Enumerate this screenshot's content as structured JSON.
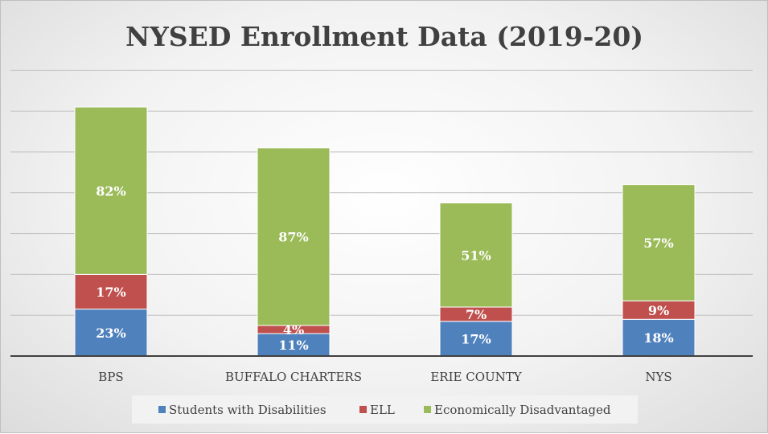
{
  "chart_data": {
    "type": "bar",
    "stacked": true,
    "title": "NYSED Enrollment Data (2019-20)",
    "categories": [
      "BPS",
      "BUFFALO CHARTERS",
      "ERIE COUNTY",
      "NYS"
    ],
    "series": [
      {
        "name": "Students with Disabilities",
        "values": [
          23,
          11,
          17,
          18
        ],
        "labels": [
          "23%",
          "11%",
          "17%",
          "18%"
        ],
        "color": "#4f81bd"
      },
      {
        "name": "ELL",
        "values": [
          17,
          4,
          7,
          9
        ],
        "labels": [
          "17%",
          "4%",
          "7%",
          "9%"
        ],
        "color": "#c0504d"
      },
      {
        "name": "Economically Disadvantaged",
        "values": [
          82,
          87,
          51,
          57
        ],
        "labels": [
          "82%",
          "87%",
          "51%",
          "57%"
        ],
        "color": "#9bbb59"
      }
    ],
    "ylim": [
      0,
      140
    ],
    "grid": true,
    "legend": "bottom"
  }
}
